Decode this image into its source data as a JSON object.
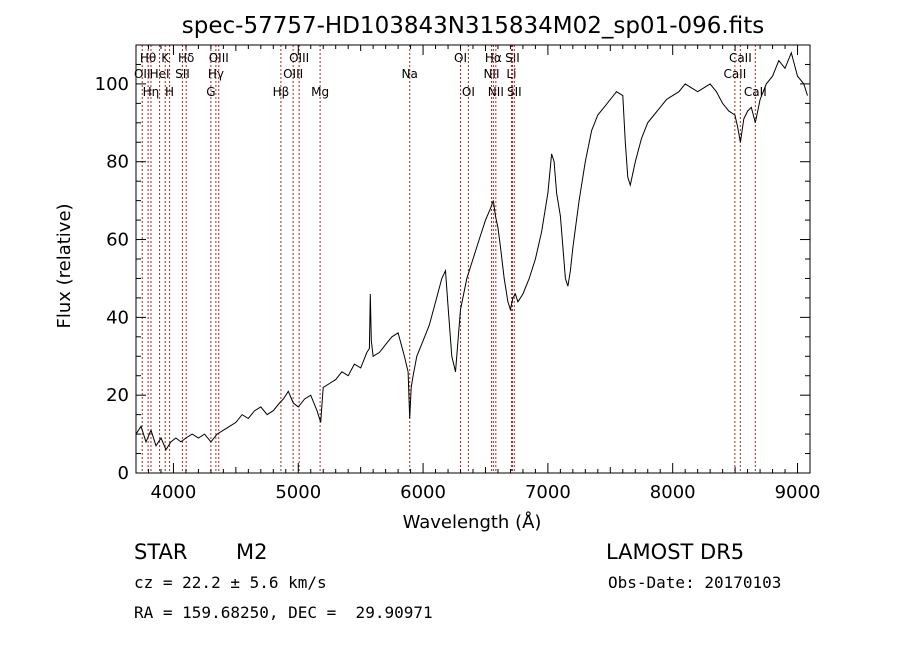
{
  "chart_data": {
    "type": "line",
    "title": "spec-57757-HD103843N315834M02_sp01-096.fits",
    "xlabel": "Wavelength (Å)",
    "ylabel": "Flux (relative)",
    "xlim": [
      3700,
      9100
    ],
    "ylim": [
      0,
      110
    ],
    "xticks": [
      4000,
      5000,
      6000,
      7000,
      8000,
      9000
    ],
    "yticks": [
      0,
      20,
      40,
      60,
      80,
      100
    ],
    "grid": false,
    "line_color": "#000000",
    "marker_color": "#b22222",
    "series": [
      {
        "x": [
          3700,
          3740,
          3780,
          3820,
          3860,
          3900,
          3940,
          3980,
          4020,
          4060,
          4100,
          4150,
          4200,
          4250,
          4300,
          4350,
          4400,
          4450,
          4500,
          4550,
          4600,
          4650,
          4700,
          4750,
          4800,
          4850,
          4880,
          4920,
          4960,
          5000,
          5050,
          5100,
          5150,
          5180,
          5200,
          5250,
          5300,
          5350,
          5400,
          5450,
          5500,
          5550,
          5570,
          5577,
          5585,
          5600,
          5650,
          5700,
          5750,
          5800,
          5850,
          5880,
          5893,
          5905,
          5920,
          5950,
          6000,
          6050,
          6100,
          6150,
          6180,
          6200,
          6230,
          6260,
          6300,
          6350,
          6400,
          6450,
          6500,
          6540,
          6563,
          6580,
          6600,
          6620,
          6650,
          6680,
          6700,
          6720,
          6740,
          6760,
          6800,
          6850,
          6900,
          6950,
          7000,
          7030,
          7050,
          7070,
          7100,
          7120,
          7140,
          7160,
          7180,
          7200,
          7250,
          7300,
          7350,
          7400,
          7450,
          7500,
          7550,
          7600,
          7620,
          7640,
          7660,
          7680,
          7700,
          7750,
          7800,
          7850,
          7900,
          7950,
          8000,
          8050,
          8100,
          8150,
          8200,
          8250,
          8300,
          8350,
          8400,
          8450,
          8498,
          8520,
          8542,
          8570,
          8600,
          8630,
          8662,
          8700,
          8750,
          8800,
          8850,
          8900,
          8950,
          9000,
          9050,
          9080
        ],
        "y": [
          10,
          12,
          8,
          11,
          7,
          9,
          6,
          8,
          9,
          8,
          9,
          10,
          9,
          10,
          8,
          10,
          11,
          12,
          13,
          15,
          14,
          16,
          17,
          15,
          16,
          18,
          19,
          21,
          18,
          17,
          19,
          20,
          16,
          13,
          22,
          23,
          24,
          26,
          25,
          28,
          27,
          31,
          32,
          46,
          34,
          30,
          31,
          33,
          35,
          36,
          30,
          26,
          14,
          22,
          25,
          30,
          34,
          38,
          44,
          50,
          52,
          43,
          30,
          26,
          42,
          50,
          55,
          60,
          65,
          68,
          70,
          66,
          63,
          58,
          50,
          44,
          42,
          45,
          46,
          44,
          46,
          50,
          55,
          62,
          72,
          82,
          80,
          72,
          66,
          58,
          50,
          48,
          52,
          58,
          70,
          80,
          88,
          92,
          94,
          96,
          98,
          97,
          85,
          76,
          74,
          77,
          80,
          86,
          90,
          92,
          94,
          96,
          97,
          98,
          100,
          99,
          98,
          99,
          100,
          98,
          95,
          93,
          92,
          89,
          85,
          91,
          93,
          94,
          90,
          96,
          100,
          102,
          106,
          104,
          108,
          102,
          100,
          97
        ]
      }
    ],
    "line_markers": [
      {
        "x": 3750,
        "label": "OII",
        "row": 2
      },
      {
        "x": 3797,
        "label": "Hθ",
        "row": 1
      },
      {
        "x": 3820,
        "label": "Hη",
        "row": 3
      },
      {
        "x": 3889,
        "label": "HeI",
        "row": 2
      },
      {
        "x": 3934,
        "label": "K",
        "row": 1
      },
      {
        "x": 3969,
        "label": "H",
        "row": 3
      },
      {
        "x": 4072,
        "label": "SII",
        "row": 2
      },
      {
        "x": 4102,
        "label": "Hδ",
        "row": 1
      },
      {
        "x": 4300,
        "label": "G",
        "row": 3
      },
      {
        "x": 4340,
        "label": "Hγ",
        "row": 2
      },
      {
        "x": 4363,
        "label": "OIII",
        "row": 1
      },
      {
        "x": 4861,
        "label": "Hβ",
        "row": 3
      },
      {
        "x": 4959,
        "label": "OIII",
        "row": 2
      },
      {
        "x": 5007,
        "label": "OIII",
        "row": 1
      },
      {
        "x": 5175,
        "label": "Mg",
        "row": 3
      },
      {
        "x": 5893,
        "label": "Na",
        "row": 2
      },
      {
        "x": 6300,
        "label": "OI",
        "row": 1
      },
      {
        "x": 6363,
        "label": "OI",
        "row": 3
      },
      {
        "x": 6548,
        "label": "NII",
        "row": 2
      },
      {
        "x": 6563,
        "label": "Hα",
        "row": 1
      },
      {
        "x": 6583,
        "label": "NII",
        "row": 3
      },
      {
        "x": 6708,
        "label": "Li",
        "row": 2
      },
      {
        "x": 6716,
        "label": "SII",
        "row": 1
      },
      {
        "x": 6731,
        "label": "SII",
        "row": 3
      },
      {
        "x": 8498,
        "label": "CaII",
        "row": 2
      },
      {
        "x": 8542,
        "label": "CaII",
        "row": 1
      },
      {
        "x": 8662,
        "label": "CaII",
        "row": 3
      }
    ]
  },
  "info": {
    "object_class": "STAR",
    "subclass": "M2",
    "survey": "LAMOST DR5",
    "redshift_text": "cz = 22.2 ± 5.6 km/s",
    "obs_date": "Obs-Date: 20170103",
    "coords": "RA = 159.68250, DEC =  29.90971"
  }
}
